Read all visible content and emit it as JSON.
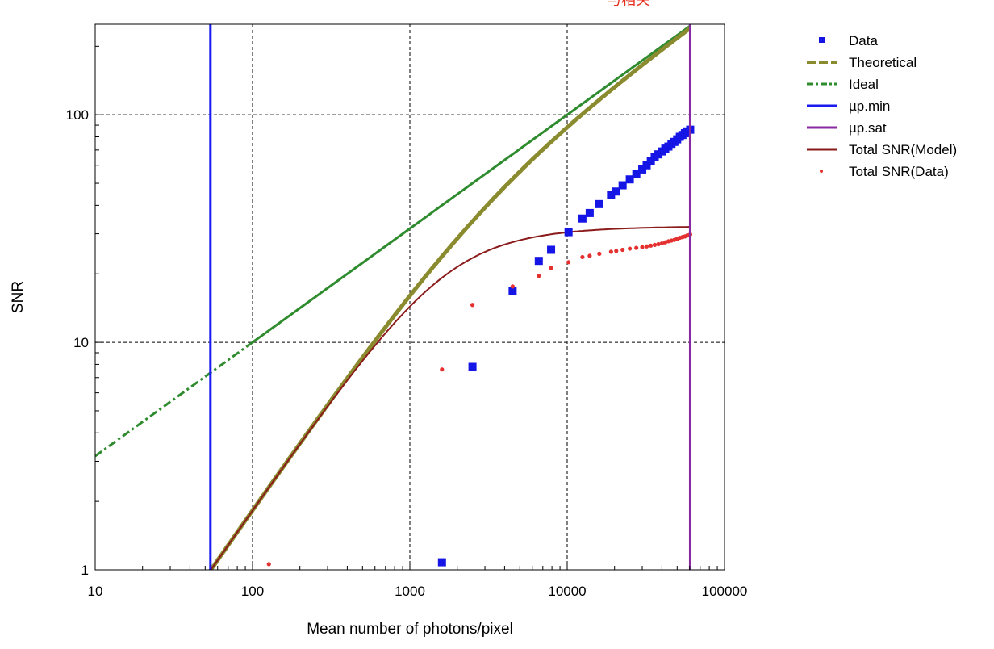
{
  "chart_data": {
    "type": "scatter",
    "title": "",
    "cut_text": "与相关",
    "xlabel": "Mean number of photons/pixel",
    "ylabel": "SNR",
    "x_scale": "log",
    "y_scale": "log",
    "xlim": [
      10,
      100000
    ],
    "ylim": [
      1,
      250
    ],
    "x_ticks": [
      {
        "value": 10,
        "label": "10"
      },
      {
        "value": 100,
        "label": "100"
      },
      {
        "value": 1000,
        "label": "1000"
      },
      {
        "value": 10000,
        "label": "10000"
      },
      {
        "value": 100000,
        "label": "100000"
      }
    ],
    "y_ticks": [
      {
        "value": 1,
        "label": "1"
      },
      {
        "value": 10,
        "label": "10"
      },
      {
        "value": 100,
        "label": "100"
      }
    ],
    "grid": true,
    "legend_position": "right",
    "colors": {
      "data": "#1515e6",
      "theoretical": "#8a8a2e",
      "ideal": "#2e8b2e",
      "mu_min": "#1a1aee",
      "mu_sat": "#8a2aa0",
      "total_model": "#8b1a1a",
      "total_data": "#e53030"
    },
    "legend": [
      {
        "key": "data",
        "label": "Data",
        "style": "square"
      },
      {
        "key": "theoretical",
        "label": "Theoretical",
        "style": "dash"
      },
      {
        "key": "ideal",
        "label": "Ideal",
        "style": "dashdot"
      },
      {
        "key": "mu_min",
        "label": "µp.min",
        "style": "solid"
      },
      {
        "key": "mu_sat",
        "label": "µp.sat",
        "style": "solid"
      },
      {
        "key": "total_model",
        "label": "Total SNR(Model)",
        "style": "solid"
      },
      {
        "key": "total_data",
        "label": "Total SNR(Data)",
        "style": "dot"
      }
    ],
    "mu_min": 54,
    "mu_sat": 60500,
    "series": [
      {
        "key": "ideal",
        "function": "y = sqrt(x)",
        "x_range": [
          10,
          60500
        ]
      },
      {
        "key": "theoretical",
        "function": "y = x / sqrt(x + 2900)",
        "x_range": [
          54,
          60500
        ]
      },
      {
        "key": "total_model",
        "function": "y = x / sqrt(x + 2900 + 0.00095 * x^2)",
        "x_range": [
          54,
          60500
        ]
      },
      {
        "key": "data",
        "x": [
          1600,
          2500,
          4500,
          6600,
          7900,
          10200,
          12500,
          13900,
          16000,
          19000,
          20500,
          22500,
          25000,
          27500,
          30000,
          32000,
          34000,
          36000,
          38000,
          40000,
          42000,
          44000,
          46000,
          48000,
          50000,
          52000,
          54000,
          56000,
          58000,
          60500
        ],
        "y": [
          1.08,
          7.8,
          16.8,
          22.8,
          25.5,
          30.5,
          35,
          37,
          40.5,
          44.5,
          46,
          49,
          52,
          55,
          57.5,
          60,
          62.5,
          65,
          67,
          69,
          71,
          72.5,
          74.5,
          76,
          78,
          80,
          81.5,
          83,
          84.5,
          86
        ]
      },
      {
        "key": "total_data",
        "x": [
          127,
          1600,
          2500,
          4500,
          6600,
          7900,
          10200,
          12500,
          13900,
          16000,
          19000,
          20500,
          22500,
          25000,
          27500,
          30000,
          32000,
          34000,
          36000,
          38000,
          40000,
          42000,
          44000,
          46000,
          48000,
          50000,
          52000,
          54000,
          56000,
          58000,
          60500
        ],
        "y": [
          1.06,
          7.6,
          14.6,
          17.6,
          19.6,
          21.2,
          22.5,
          23.7,
          24,
          24.5,
          25,
          25.2,
          25.5,
          25.8,
          26,
          26.2,
          26.4,
          26.6,
          26.8,
          27,
          27.2,
          27.5,
          27.8,
          28,
          28.2,
          28.5,
          28.8,
          29,
          29.2,
          29.5,
          29.8
        ]
      }
    ]
  }
}
